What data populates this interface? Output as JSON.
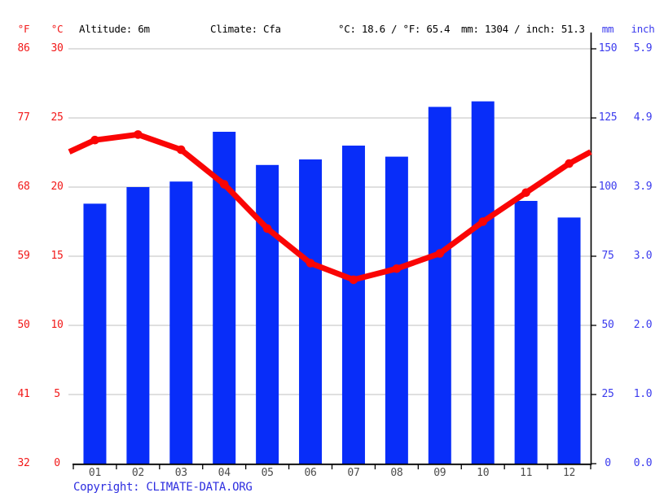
{
  "header": {
    "f_unit": "°F",
    "c_unit": "°C",
    "altitude": "Altitude: 6m",
    "climate": "Climate: Cfa",
    "temperature_summary": "°C: 18.6 / °F: 65.4",
    "precipitation_summary": "mm: 1304 / inch: 51.3",
    "mm_unit": "mm",
    "inch_unit": "inch"
  },
  "axes": {
    "left_fahrenheit": [
      "86",
      "77",
      "68",
      "59",
      "50",
      "41",
      "32"
    ],
    "left_celsius": [
      "30",
      "25",
      "20",
      "15",
      "10",
      "5",
      "0"
    ],
    "right_mm": [
      "150",
      "125",
      "100",
      "75",
      "50",
      "25",
      "0"
    ],
    "right_inch": [
      "5.9",
      "4.9",
      "3.9",
      "3.0",
      "2.0",
      "1.0",
      "0.0"
    ]
  },
  "chart_data": {
    "type": "combo bar+line climograph",
    "categories": [
      "01",
      "02",
      "03",
      "04",
      "05",
      "06",
      "07",
      "08",
      "09",
      "10",
      "11",
      "12"
    ],
    "series": [
      {
        "name": "Precipitation",
        "type": "bar",
        "unit": "mm",
        "values": [
          94,
          100,
          102,
          120,
          108,
          110,
          115,
          111,
          129,
          131,
          95,
          89
        ]
      },
      {
        "name": "Temperature",
        "type": "line",
        "unit": "°C",
        "values": [
          23.4,
          23.8,
          22.7,
          20.2,
          17.0,
          14.5,
          13.3,
          14.1,
          15.2,
          17.5,
          19.6,
          21.7
        ]
      }
    ],
    "left_axis": {
      "unit": "°C",
      "ticks": [
        30,
        25,
        20,
        15,
        10,
        5,
        0
      ],
      "secondary_unit": "°F",
      "secondary_ticks": [
        86,
        77,
        68,
        59,
        50,
        41,
        32
      ],
      "range": [
        0,
        30
      ]
    },
    "right_axis": {
      "unit": "mm",
      "ticks": [
        150,
        125,
        100,
        75,
        50,
        25,
        0
      ],
      "secondary_unit": "inch",
      "secondary_ticks": [
        5.9,
        4.9,
        3.9,
        3.0,
        2.0,
        1.0,
        0.0
      ],
      "range": [
        0,
        150
      ]
    },
    "annual": {
      "mean_temp_c": 18.6,
      "mean_temp_f": 65.4,
      "precip_mm": 1304,
      "precip_inch": 51.3
    },
    "altitude_m": 6,
    "climate_class": "Cfa",
    "grid": true,
    "line_extends_to_plot_edges": true
  },
  "copyright": {
    "prefix": "Copyright: ",
    "link_text": "CLIMATE-DATA.ORG"
  },
  "colors": {
    "bar": "#082df9",
    "line": "#fa0505",
    "left_axis_text": "#f21919",
    "right_axis_text": "#3b3bee",
    "month_text": "#4d4d4d",
    "header_text": "#000000",
    "copyright_text": "#2d2de0",
    "gridline": "#cccccc",
    "axis": "#000000",
    "background": "#ffffff"
  }
}
